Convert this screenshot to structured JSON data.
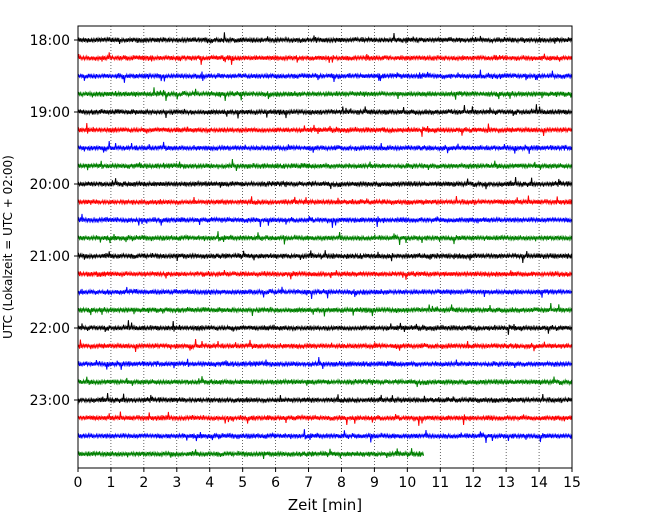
{
  "chart_data": {
    "type": "line",
    "title": "",
    "xlabel": "Zeit  [min]",
    "ylabel": "UTC (Lokalzeit = UTC + 02:00)",
    "xlim": [
      0,
      15
    ],
    "x_ticks": [
      "0",
      "1",
      "2",
      "3",
      "4",
      "5",
      "6",
      "7",
      "8",
      "9",
      "10",
      "11",
      "12",
      "13",
      "14",
      "15"
    ],
    "y_ticks": [
      "18:00",
      "19:00",
      "20:00",
      "21:00",
      "22:00",
      "23:00"
    ],
    "grid": "vertical dotted",
    "colors": [
      "#000000",
      "#ff0000",
      "#0000ff",
      "#008000"
    ],
    "traces": [
      {
        "start": "18:00",
        "color": "#000000",
        "end_min": 15
      },
      {
        "start": "18:15",
        "color": "#ff0000",
        "end_min": 15
      },
      {
        "start": "18:30",
        "color": "#0000ff",
        "end_min": 15
      },
      {
        "start": "18:45",
        "color": "#008000",
        "end_min": 15
      },
      {
        "start": "19:00",
        "color": "#000000",
        "end_min": 15
      },
      {
        "start": "19:15",
        "color": "#ff0000",
        "end_min": 15
      },
      {
        "start": "19:30",
        "color": "#0000ff",
        "end_min": 15
      },
      {
        "start": "19:45",
        "color": "#008000",
        "end_min": 15
      },
      {
        "start": "20:00",
        "color": "#000000",
        "end_min": 15
      },
      {
        "start": "20:15",
        "color": "#ff0000",
        "end_min": 15
      },
      {
        "start": "20:30",
        "color": "#0000ff",
        "end_min": 15
      },
      {
        "start": "20:45",
        "color": "#008000",
        "end_min": 15
      },
      {
        "start": "21:00",
        "color": "#000000",
        "end_min": 15
      },
      {
        "start": "21:15",
        "color": "#ff0000",
        "end_min": 15
      },
      {
        "start": "21:30",
        "color": "#0000ff",
        "end_min": 15
      },
      {
        "start": "21:45",
        "color": "#008000",
        "end_min": 15
      },
      {
        "start": "22:00",
        "color": "#000000",
        "end_min": 15
      },
      {
        "start": "22:15",
        "color": "#ff0000",
        "end_min": 15
      },
      {
        "start": "22:30",
        "color": "#0000ff",
        "end_min": 15
      },
      {
        "start": "22:45",
        "color": "#008000",
        "end_min": 15
      },
      {
        "start": "23:00",
        "color": "#000000",
        "end_min": 15
      },
      {
        "start": "23:15",
        "color": "#ff0000",
        "end_min": 15
      },
      {
        "start": "23:30",
        "color": "#0000ff",
        "end_min": 15
      },
      {
        "start": "23:45",
        "color": "#008000",
        "end_min": 10.5
      }
    ]
  }
}
